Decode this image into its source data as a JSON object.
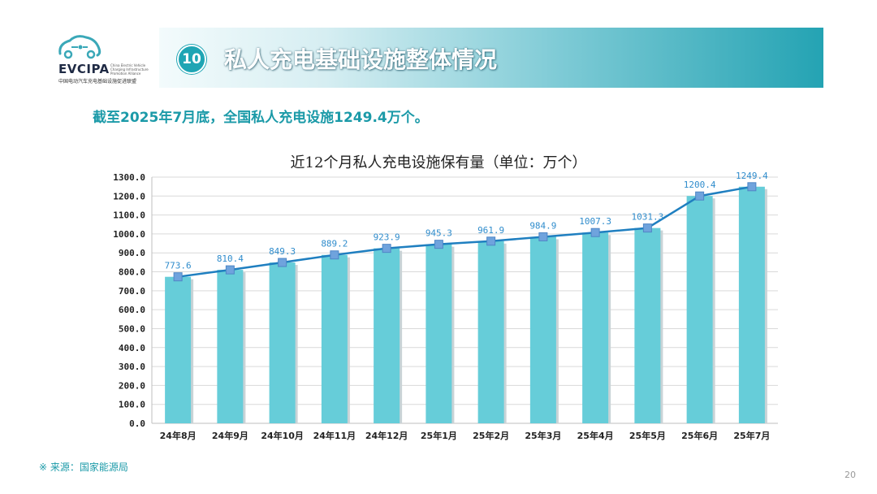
{
  "logo": {
    "brand": "EVCIPA",
    "sub": "China Electric Vehicle Charging Infrastructure Promotion Alliance",
    "cn": "中国电动汽车充电基础设施促进联盟"
  },
  "header": {
    "number": "10",
    "title": "私人充电基础设施整体情况"
  },
  "summary": "截至2025年7月底，全国私人充电设施1249.4万个。",
  "source": "※ 来源：国家能源局",
  "page_number": "20",
  "colors": {
    "bar": "#66cdd9",
    "line": "#1f7fc0",
    "marker": "#6fa3dd",
    "label": "#2f8ccc",
    "accent": "#1b9aa8"
  },
  "chart_data": {
    "type": "bar",
    "title": "近12个月私人充电设施保有量（单位：万个）",
    "categories": [
      "24年8月",
      "24年9月",
      "24年10月",
      "24年11月",
      "24年12月",
      "25年1月",
      "25年2月",
      "25年3月",
      "25年4月",
      "25年5月",
      "25年6月",
      "25年7月"
    ],
    "values": [
      773.6,
      810.4,
      849.3,
      889.2,
      923.9,
      945.3,
      961.9,
      984.9,
      1007.3,
      1031.3,
      1200.4,
      1249.4
    ],
    "value_labels": [
      "773.6",
      "810.4",
      "849.3",
      "889.2",
      "923.9",
      "945.3",
      "961.9",
      "984.9",
      "1007.3",
      "1031.3",
      "1200.4",
      "1249.4"
    ],
    "overlay": "line",
    "ylim": [
      0,
      1300
    ],
    "yticks": [
      "0.0",
      "100.0",
      "200.0",
      "300.0",
      "400.0",
      "500.0",
      "600.0",
      "700.0",
      "800.0",
      "900.0",
      "1000.0",
      "1100.0",
      "1200.0",
      "1300.0"
    ],
    "grid": true,
    "xlabel": "",
    "ylabel": ""
  }
}
